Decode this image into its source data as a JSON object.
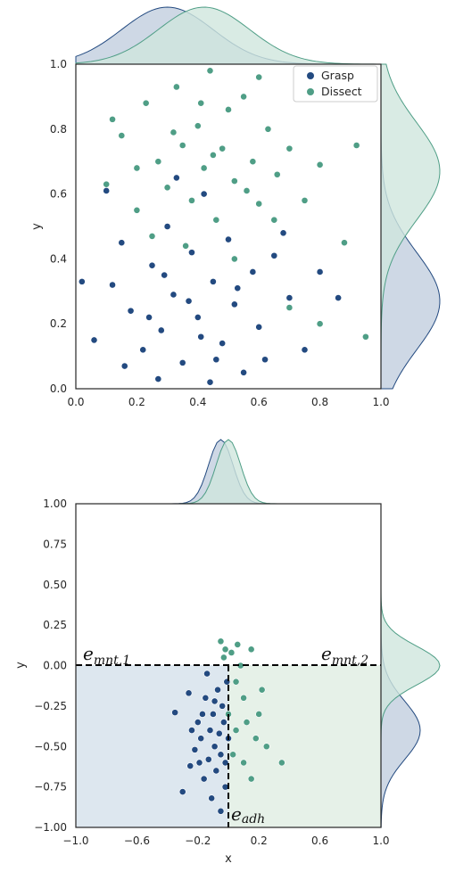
{
  "colors": {
    "grasp": "#234a80",
    "dissect": "#4f9e86",
    "grasp_fill": "#c2cede",
    "dissect_fill": "#cfe6dd",
    "grasp_region": "#dde7ef",
    "dissect_region": "#e6f1e8"
  },
  "chart_data": [
    {
      "type": "scatter",
      "variant": "joint plot with marginal density curves",
      "xlabel": "",
      "ylabel": "y",
      "xlim": [
        0.0,
        1.0
      ],
      "ylim": [
        0.0,
        1.0
      ],
      "x_ticks": [
        "0.0",
        "0.2",
        "0.4",
        "0.6",
        "0.8",
        "1.0"
      ],
      "y_ticks": [
        "0.0",
        "0.2",
        "0.4",
        "0.6",
        "0.8",
        "1.0"
      ],
      "grid": false,
      "legend_position": "top-right",
      "series": [
        {
          "name": "Grasp",
          "color": "#234a80",
          "x_mode": 0.3,
          "x_spread": 0.15,
          "y_mode": 0.27,
          "y_spread": 0.15,
          "points": [
            [
              0.06,
              0.15
            ],
            [
              0.12,
              0.32
            ],
            [
              0.18,
              0.24
            ],
            [
              0.22,
              0.12
            ],
            [
              0.25,
              0.38
            ],
            [
              0.28,
              0.18
            ],
            [
              0.3,
              0.5
            ],
            [
              0.32,
              0.29
            ],
            [
              0.35,
              0.08
            ],
            [
              0.38,
              0.42
            ],
            [
              0.4,
              0.22
            ],
            [
              0.42,
              0.6
            ],
            [
              0.45,
              0.33
            ],
            [
              0.48,
              0.14
            ],
            [
              0.5,
              0.46
            ],
            [
              0.52,
              0.26
            ],
            [
              0.55,
              0.05
            ],
            [
              0.58,
              0.36
            ],
            [
              0.6,
              0.19
            ],
            [
              0.65,
              0.41
            ],
            [
              0.7,
              0.28
            ],
            [
              0.75,
              0.12
            ],
            [
              0.8,
              0.36
            ],
            [
              0.02,
              0.33
            ],
            [
              0.15,
              0.45
            ],
            [
              0.2,
              0.55
            ],
            [
              0.33,
              0.65
            ],
            [
              0.27,
              0.03
            ],
            [
              0.44,
              0.02
            ],
            [
              0.62,
              0.09
            ],
            [
              0.86,
              0.28
            ],
            [
              0.1,
              0.61
            ],
            [
              0.37,
              0.27
            ],
            [
              0.41,
              0.16
            ],
            [
              0.29,
              0.35
            ],
            [
              0.53,
              0.31
            ],
            [
              0.24,
              0.22
            ],
            [
              0.46,
              0.09
            ],
            [
              0.68,
              0.48
            ],
            [
              0.16,
              0.07
            ]
          ]
        },
        {
          "name": "Dissect",
          "color": "#4f9e86",
          "x_mode": 0.42,
          "x_spread": 0.15,
          "y_mode": 0.67,
          "y_spread": 0.15,
          "points": [
            [
              0.1,
              0.63
            ],
            [
              0.15,
              0.78
            ],
            [
              0.2,
              0.55
            ],
            [
              0.23,
              0.88
            ],
            [
              0.27,
              0.7
            ],
            [
              0.3,
              0.62
            ],
            [
              0.33,
              0.93
            ],
            [
              0.35,
              0.75
            ],
            [
              0.38,
              0.58
            ],
            [
              0.4,
              0.81
            ],
            [
              0.42,
              0.68
            ],
            [
              0.44,
              0.98
            ],
            [
              0.46,
              0.52
            ],
            [
              0.48,
              0.74
            ],
            [
              0.5,
              0.86
            ],
            [
              0.52,
              0.64
            ],
            [
              0.55,
              0.9
            ],
            [
              0.58,
              0.7
            ],
            [
              0.6,
              0.57
            ],
            [
              0.63,
              0.8
            ],
            [
              0.66,
              0.66
            ],
            [
              0.7,
              0.74
            ],
            [
              0.75,
              0.58
            ],
            [
              0.8,
              0.69
            ],
            [
              0.88,
              0.45
            ],
            [
              0.92,
              0.75
            ],
            [
              0.12,
              0.83
            ],
            [
              0.25,
              0.47
            ],
            [
              0.36,
              0.44
            ],
            [
              0.52,
              0.4
            ],
            [
              0.7,
              0.25
            ],
            [
              0.8,
              0.2
            ],
            [
              0.95,
              0.16
            ],
            [
              0.6,
              0.96
            ],
            [
              0.45,
              0.72
            ],
            [
              0.32,
              0.79
            ],
            [
              0.56,
              0.61
            ],
            [
              0.41,
              0.88
            ],
            [
              0.65,
              0.52
            ],
            [
              0.2,
              0.68
            ]
          ]
        }
      ]
    },
    {
      "type": "scatter",
      "variant": "joint plot with marginal density curves and region annotations",
      "xlabel": "x",
      "ylabel": "y",
      "xlim": [
        -1.0,
        1.0
      ],
      "ylim": [
        -1.0,
        1.0
      ],
      "x_ticks": [
        "−1.0",
        "−0.6",
        "−0.2",
        "0.2",
        "0.6",
        "1.0"
      ],
      "y_ticks": [
        "−1.00",
        "−0.75",
        "−0.50",
        "−0.25",
        "0.00",
        "0.25",
        "0.50",
        "0.75",
        "1.00"
      ],
      "grid": false,
      "legend_position": "none",
      "threshold_lines": {
        "horizontal_y": 0.0,
        "vertical_x": 0.0
      },
      "annotations": [
        {
          "text": "e",
          "sub": "mnt,1"
        },
        {
          "text": "e",
          "sub": "mnt,2"
        },
        {
          "text": "e",
          "sub": "adh"
        }
      ],
      "series": [
        {
          "name": "Grasp",
          "color": "#234a80",
          "x_mode": -0.05,
          "x_spread": 0.08,
          "y_mode": -0.4,
          "y_spread": 0.18,
          "points": [
            [
              -0.35,
              -0.29
            ],
            [
              -0.3,
              -0.78
            ],
            [
              -0.25,
              -0.62
            ],
            [
              -0.22,
              -0.52
            ],
            [
              -0.2,
              -0.35
            ],
            [
              -0.18,
              -0.45
            ],
            [
              -0.16,
              -0.7
            ],
            [
              -0.15,
              -0.2
            ],
            [
              -0.13,
              -0.58
            ],
            [
              -0.12,
              -0.4
            ],
            [
              -0.1,
              -0.3
            ],
            [
              -0.09,
              -0.5
            ],
            [
              -0.08,
              -0.65
            ],
            [
              -0.07,
              -0.15
            ],
            [
              -0.06,
              -0.42
            ],
            [
              -0.05,
              -0.55
            ],
            [
              -0.04,
              -0.25
            ],
            [
              -0.03,
              -0.35
            ],
            [
              -0.02,
              -0.6
            ],
            [
              -0.01,
              -0.1
            ],
            [
              0.0,
              -0.45
            ],
            [
              -0.24,
              -0.4
            ],
            [
              -0.19,
              -0.6
            ],
            [
              -0.11,
              -0.82
            ],
            [
              -0.14,
              -0.05
            ],
            [
              -0.26,
              -0.17
            ],
            [
              -0.05,
              -0.9
            ],
            [
              -0.02,
              -0.75
            ],
            [
              -0.17,
              -0.3
            ],
            [
              -0.09,
              -0.22
            ]
          ]
        },
        {
          "name": "Dissect",
          "color": "#4f9e86",
          "x_mode": 0.0,
          "x_spread": 0.08,
          "y_mode": 0.0,
          "y_spread": 0.12,
          "points": [
            [
              -0.05,
              0.15
            ],
            [
              -0.02,
              0.1
            ],
            [
              0.02,
              0.08
            ],
            [
              0.05,
              -0.1
            ],
            [
              0.1,
              -0.2
            ],
            [
              0.15,
              0.1
            ],
            [
              0.2,
              -0.3
            ],
            [
              0.25,
              -0.5
            ],
            [
              0.35,
              -0.6
            ],
            [
              0.05,
              -0.4
            ],
            [
              0.1,
              -0.6
            ],
            [
              0.15,
              -0.7
            ],
            [
              0.0,
              -0.3
            ],
            [
              0.08,
              0.0
            ],
            [
              0.12,
              -0.35
            ],
            [
              0.03,
              -0.55
            ],
            [
              0.18,
              -0.45
            ],
            [
              -0.03,
              0.05
            ],
            [
              0.06,
              0.13
            ],
            [
              0.22,
              -0.15
            ]
          ]
        }
      ]
    }
  ]
}
